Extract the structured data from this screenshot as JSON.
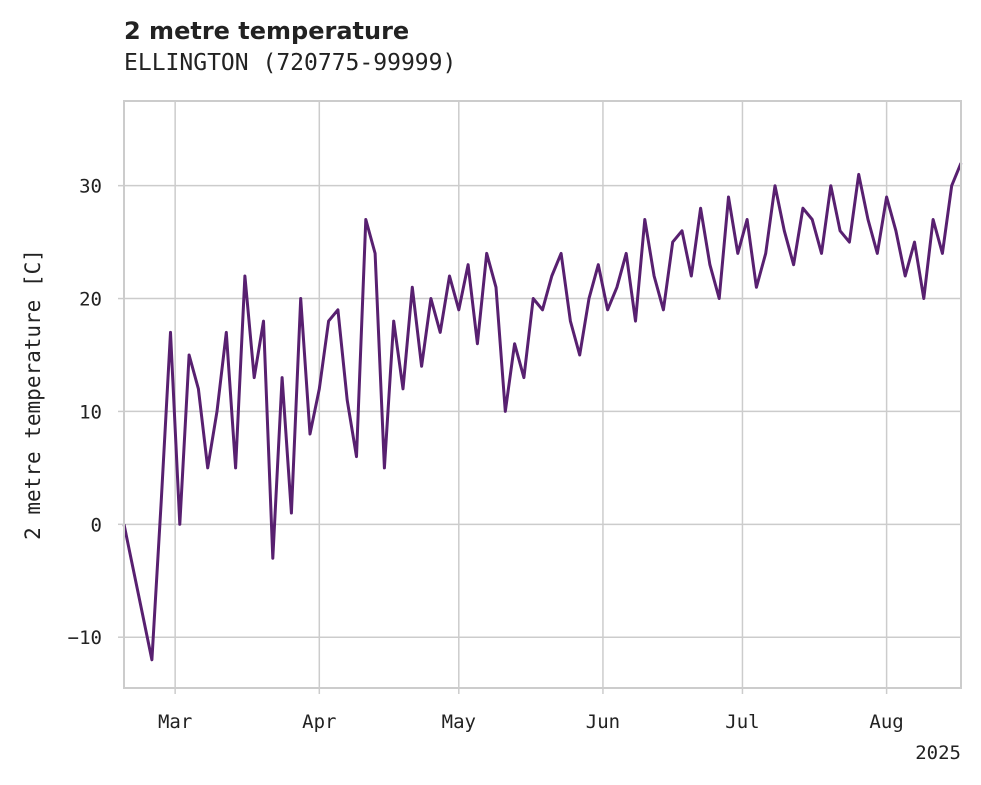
{
  "chart_data": {
    "type": "line",
    "title": "2 metre temperature",
    "subtitle": "ELLINGTON (720775-99999)",
    "xlabel": "",
    "ylabel": "2 metre temperature [C]",
    "x_tick_labels": [
      "Mar",
      "Apr",
      "May",
      "Jun",
      "Jul",
      "Aug"
    ],
    "x_tick_dates": [
      "2025-03-01",
      "2025-04-01",
      "2025-05-01",
      "2025-06-01",
      "2025-07-01",
      "2025-08-01"
    ],
    "x_offset_label": "2025",
    "xlim": [
      "2025-02-18",
      "2025-08-17"
    ],
    "ylim": [
      -14.5,
      37.5
    ],
    "y_ticks": [
      -10,
      0,
      10,
      20,
      30
    ],
    "grid": true,
    "legend": "none",
    "series": [
      {
        "color": "#582070",
        "x": [
          "2025-02-18",
          "2025-02-20",
          "2025-02-22",
          "2025-02-24",
          "2025-02-26",
          "2025-02-28",
          "2025-03-02",
          "2025-03-04",
          "2025-03-06",
          "2025-03-08",
          "2025-03-10",
          "2025-03-12",
          "2025-03-14",
          "2025-03-16",
          "2025-03-18",
          "2025-03-20",
          "2025-03-22",
          "2025-03-24",
          "2025-03-26",
          "2025-03-28",
          "2025-03-30",
          "2025-04-01",
          "2025-04-03",
          "2025-04-05",
          "2025-04-07",
          "2025-04-09",
          "2025-04-11",
          "2025-04-13",
          "2025-04-15",
          "2025-04-17",
          "2025-04-19",
          "2025-04-21",
          "2025-04-23",
          "2025-04-25",
          "2025-04-27",
          "2025-04-29",
          "2025-05-01",
          "2025-05-03",
          "2025-05-05",
          "2025-05-07",
          "2025-05-09",
          "2025-05-11",
          "2025-05-13",
          "2025-05-15",
          "2025-05-17",
          "2025-05-19",
          "2025-05-21",
          "2025-05-23",
          "2025-05-25",
          "2025-05-27",
          "2025-05-29",
          "2025-05-31",
          "2025-06-02",
          "2025-06-04",
          "2025-06-06",
          "2025-06-08",
          "2025-06-10",
          "2025-06-12",
          "2025-06-14",
          "2025-06-16",
          "2025-06-18",
          "2025-06-20",
          "2025-06-22",
          "2025-06-24",
          "2025-06-26",
          "2025-06-28",
          "2025-06-30",
          "2025-07-02",
          "2025-07-04",
          "2025-07-06",
          "2025-07-08",
          "2025-07-10",
          "2025-07-12",
          "2025-07-14",
          "2025-07-16",
          "2025-07-18",
          "2025-07-20",
          "2025-07-22",
          "2025-07-24",
          "2025-07-26",
          "2025-07-28",
          "2025-07-30",
          "2025-08-01",
          "2025-08-03",
          "2025-08-05",
          "2025-08-07",
          "2025-08-09",
          "2025-08-11",
          "2025-08-13",
          "2025-08-15",
          "2025-08-17"
        ],
        "y": [
          0,
          -4,
          -8,
          -12,
          2,
          17,
          0,
          15,
          12,
          5,
          10,
          17,
          5,
          22,
          13,
          18,
          -3,
          13,
          1,
          20,
          8,
          12,
          18,
          19,
          11,
          6,
          27,
          24,
          5,
          18,
          12,
          21,
          14,
          20,
          17,
          22,
          19,
          23,
          16,
          24,
          21,
          10,
          16,
          13,
          20,
          19,
          22,
          24,
          18,
          15,
          20,
          23,
          19,
          21,
          24,
          18,
          27,
          22,
          19,
          25,
          26,
          22,
          28,
          23,
          20,
          29,
          24,
          27,
          21,
          24,
          30,
          26,
          23,
          28,
          27,
          24,
          30,
          26,
          25,
          31,
          27,
          24,
          29,
          26,
          22,
          25,
          20,
          27,
          24,
          30,
          32
        ]
      }
    ]
  }
}
